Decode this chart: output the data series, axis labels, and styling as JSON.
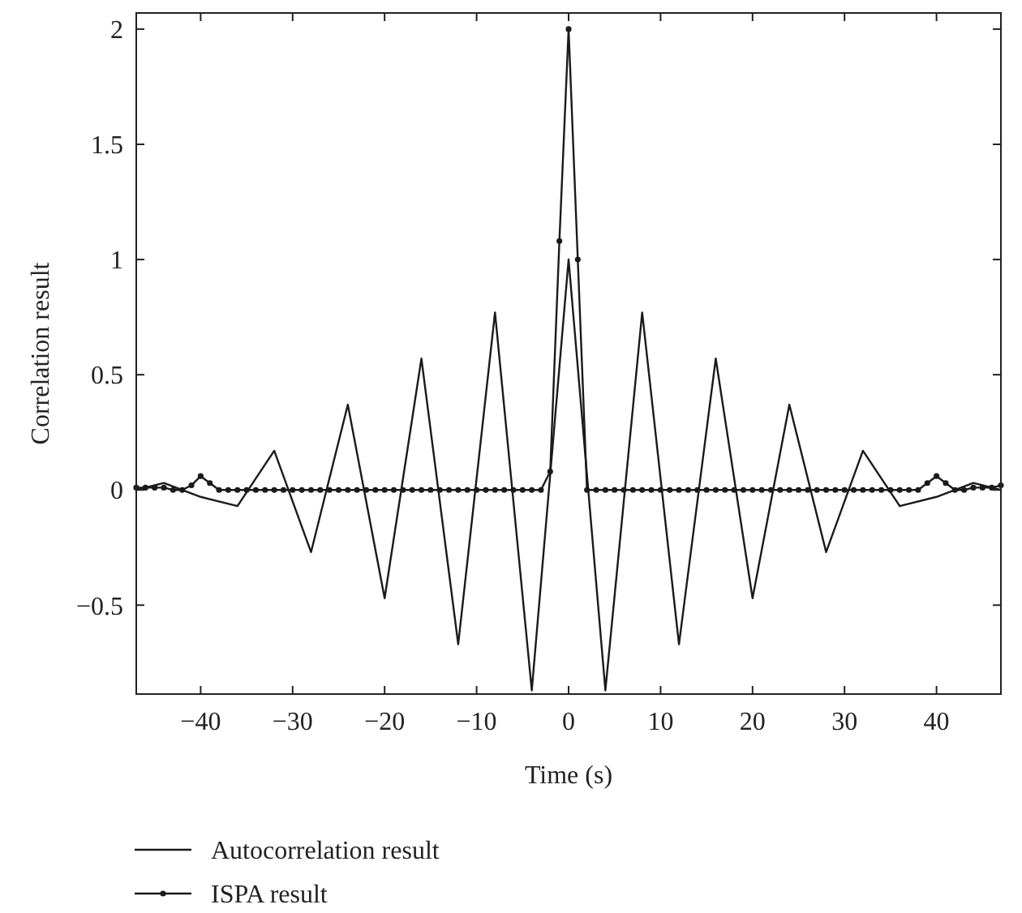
{
  "chart_data": {
    "type": "line",
    "xlabel": "Time (s)",
    "ylabel": "Correlation result",
    "xlim": [
      -47,
      47
    ],
    "ylim": [
      -0.886,
      2.07
    ],
    "xticks": [
      {
        "value": -40,
        "label": "−40"
      },
      {
        "value": -30,
        "label": "−30"
      },
      {
        "value": -20,
        "label": "−20"
      },
      {
        "value": -10,
        "label": "−10"
      },
      0,
      10,
      20,
      30,
      40
    ],
    "yticks": [
      {
        "value": -0.5,
        "label": "−0.5"
      },
      0,
      0.5,
      1,
      1.5,
      2
    ],
    "legend": "bottom",
    "grid": false,
    "line_style": "solid",
    "series": [
      {
        "name": "Autocorrelation result",
        "color": "#1a1a1a",
        "marker": "none",
        "x": [
          -47,
          -44,
          -40,
          -36,
          -32,
          -28,
          -24,
          -20,
          -16,
          -12,
          -8,
          -4,
          0,
          4,
          8,
          12,
          16,
          20,
          24,
          28,
          32,
          36,
          40,
          44,
          47
        ],
        "values": [
          0,
          0.03,
          -0.03,
          -0.07,
          0.17,
          -0.27,
          0.37,
          -0.47,
          0.57,
          -0.67,
          0.77,
          -0.87,
          1,
          -0.87,
          0.77,
          -0.67,
          0.57,
          -0.47,
          0.37,
          -0.27,
          0.17,
          -0.07,
          -0.03,
          0.03,
          0
        ]
      },
      {
        "name": "ISPA result",
        "color": "#1a1a1a",
        "marker": "circle",
        "x": [
          -47,
          -46,
          -45,
          -44,
          -43,
          -42,
          -41,
          -40,
          -39,
          -38,
          -37,
          -36,
          -35,
          -34,
          -33,
          -32,
          -31,
          -30,
          -29,
          -28,
          -27,
          -26,
          -25,
          -24,
          -23,
          -22,
          -21,
          -20,
          -19,
          -18,
          -17,
          -16,
          -15,
          -14,
          -13,
          -12,
          -11,
          -10,
          -9,
          -8,
          -7,
          -6,
          -5,
          -4,
          -3,
          -2,
          -1,
          0,
          1,
          2,
          3,
          4,
          5,
          6,
          7,
          8,
          9,
          10,
          11,
          12,
          13,
          14,
          15,
          16,
          17,
          18,
          19,
          20,
          21,
          22,
          23,
          24,
          25,
          26,
          27,
          28,
          29,
          30,
          31,
          32,
          33,
          34,
          35,
          36,
          37,
          38,
          39,
          40,
          41,
          42,
          43,
          44,
          45,
          46,
          47
        ],
        "values": [
          0.01,
          0.01,
          0.01,
          0.01,
          0,
          0,
          0.02,
          0.06,
          0.03,
          0,
          0,
          0,
          0,
          0,
          0,
          0,
          0,
          0,
          0,
          0,
          0,
          0,
          0,
          0,
          0,
          0,
          0,
          0,
          0,
          0,
          0,
          0,
          0,
          0,
          0,
          0,
          0,
          0,
          0,
          0,
          0,
          0,
          0,
          0,
          0,
          0.08,
          1.08,
          2,
          1,
          0,
          0,
          0,
          0,
          0,
          0,
          0,
          0,
          0,
          0,
          0,
          0,
          0,
          0,
          0,
          0,
          0,
          0,
          0,
          0,
          0,
          0,
          0,
          0,
          0,
          0,
          0,
          0,
          0,
          0,
          0,
          0,
          0,
          0,
          0,
          0,
          0,
          0.03,
          0.06,
          0.03,
          0,
          0,
          0.01,
          0.01,
          0.01,
          0.02
        ]
      }
    ]
  }
}
